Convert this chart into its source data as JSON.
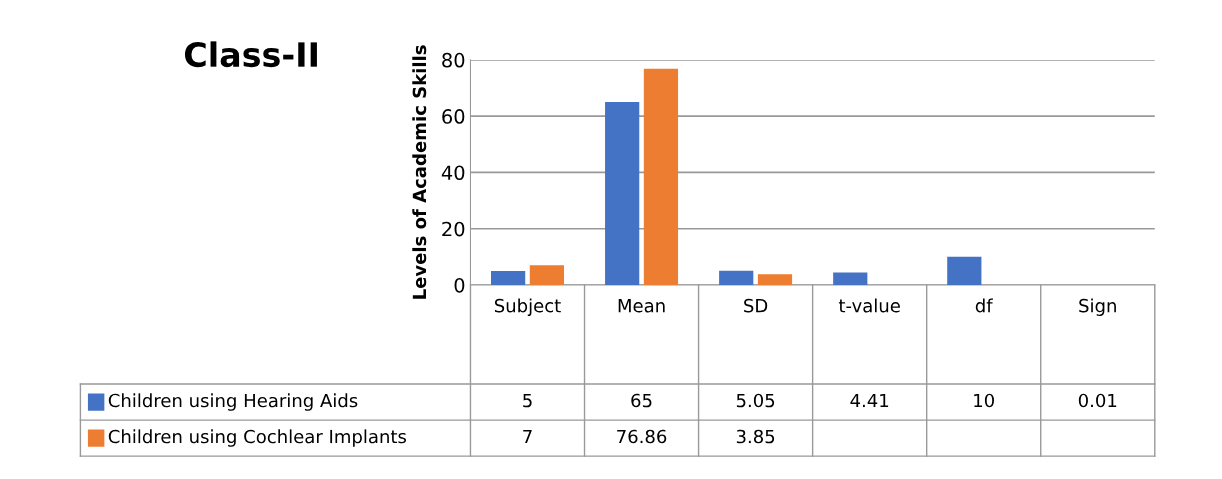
{
  "chart_data": {
    "type": "bar",
    "title": "Class-II",
    "ylabel": "Levels of Academic Skills",
    "categories": [
      "Subject",
      "Mean",
      "SD",
      "t-value",
      "df",
      "Sign"
    ],
    "series": [
      {
        "name": "Children using Hearing Aids",
        "color": "#4472c4",
        "values": [
          5,
          65,
          5.05,
          4.41,
          10,
          0.01
        ]
      },
      {
        "name": "Children using Cochlear Implants",
        "color": "#ed7d31",
        "values": [
          7,
          76.86,
          3.85,
          null,
          null,
          null
        ]
      }
    ],
    "ylim": [
      0,
      80
    ],
    "yticks": [
      0,
      20,
      40,
      60,
      80
    ],
    "grid": "y",
    "legend": "bottom",
    "data_labels": true
  }
}
